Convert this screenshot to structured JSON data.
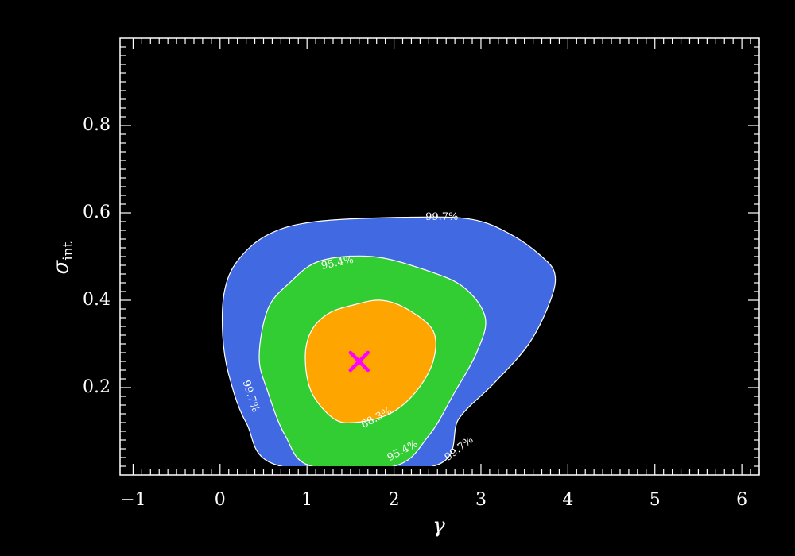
{
  "chart_data": {
    "type": "contour",
    "xlabel": "γ",
    "ylabel": "σ",
    "ylabel_sub": "int",
    "xlim": [
      -1.15,
      6.2
    ],
    "ylim": [
      0.0,
      1.0
    ],
    "x_ticks": [
      -1,
      0,
      1,
      2,
      3,
      4,
      5,
      6
    ],
    "x_tick_labels": [
      "−1",
      "0",
      "1",
      "2",
      "3",
      "4",
      "5",
      "6"
    ],
    "y_ticks": [
      0.2,
      0.4,
      0.6,
      0.8
    ],
    "y_tick_labels": [
      "0.2",
      "0.4",
      "0.6",
      "0.8"
    ],
    "background": "#000000",
    "axis_color": "#ffffff",
    "best_fit": {
      "x": 1.6,
      "y": 0.26,
      "marker": "x",
      "color": "#ff00ff"
    },
    "contours": [
      {
        "level": "99.7%",
        "color": "#4169e1",
        "points": [
          [
            0.7,
            0.02
          ],
          [
            0.3,
            0.12
          ],
          [
            0.1,
            0.23
          ],
          [
            0.03,
            0.32
          ],
          [
            0.05,
            0.42
          ],
          [
            0.2,
            0.49
          ],
          [
            0.55,
            0.55
          ],
          [
            1.1,
            0.58
          ],
          [
            2.2,
            0.59
          ],
          [
            2.9,
            0.585
          ],
          [
            3.35,
            0.55
          ],
          [
            3.7,
            0.5
          ],
          [
            3.85,
            0.46
          ],
          [
            3.8,
            0.4
          ],
          [
            3.55,
            0.3
          ],
          [
            3.15,
            0.21
          ],
          [
            2.75,
            0.13
          ],
          [
            2.45,
            0.02
          ]
        ]
      },
      {
        "level": "95.4%",
        "color": "#32cd32",
        "points": [
          [
            1.05,
            0.02
          ],
          [
            0.75,
            0.09
          ],
          [
            0.55,
            0.19
          ],
          [
            0.45,
            0.27
          ],
          [
            0.55,
            0.38
          ],
          [
            0.8,
            0.44
          ],
          [
            1.15,
            0.49
          ],
          [
            1.75,
            0.5
          ],
          [
            2.35,
            0.47
          ],
          [
            2.8,
            0.43
          ],
          [
            3.05,
            0.36
          ],
          [
            2.95,
            0.28
          ],
          [
            2.7,
            0.19
          ],
          [
            2.4,
            0.09
          ],
          [
            2.0,
            0.02
          ]
        ]
      },
      {
        "level": "68.3%",
        "color": "#ffa500",
        "points": [
          [
            1.3,
            0.13
          ],
          [
            1.05,
            0.19
          ],
          [
            0.98,
            0.27
          ],
          [
            1.05,
            0.33
          ],
          [
            1.25,
            0.37
          ],
          [
            1.55,
            0.39
          ],
          [
            1.85,
            0.4
          ],
          [
            2.15,
            0.38
          ],
          [
            2.45,
            0.33
          ],
          [
            2.45,
            0.26
          ],
          [
            2.25,
            0.19
          ],
          [
            1.95,
            0.14
          ],
          [
            1.55,
            0.12
          ]
        ]
      }
    ],
    "contour_labels": [
      {
        "text": "99.7%",
        "x": 2.55,
        "y": 0.59,
        "angle": 0
      },
      {
        "text": "95.4%",
        "x": 1.35,
        "y": 0.485,
        "angle": -12
      },
      {
        "text": "99.7%",
        "x": 0.35,
        "y": 0.18,
        "angle": 72
      },
      {
        "text": "68.3%",
        "x": 1.8,
        "y": 0.13,
        "angle": -28
      },
      {
        "text": "95.4%",
        "x": 2.1,
        "y": 0.055,
        "angle": -28
      },
      {
        "text": "99.7%",
        "x": 2.75,
        "y": 0.06,
        "angle": -38
      }
    ]
  }
}
